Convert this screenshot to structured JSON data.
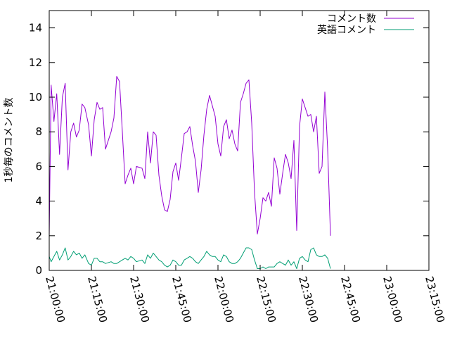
{
  "chart_data": {
    "type": "line",
    "ylabel": "1秒毎のコメント数",
    "x_range": [
      "21:00:00",
      "23:15:00"
    ],
    "x_ticks": [
      "21:00:00",
      "21:15:00",
      "21:30:00",
      "21:45:00",
      "22:00:00",
      "22:15:00",
      "22:30:00",
      "22:45:00",
      "23:00:00",
      "23:15:00"
    ],
    "y_range": [
      0,
      15
    ],
    "y_ticks": [
      "0",
      "2",
      "4",
      "6",
      "8",
      "10",
      "12",
      "14"
    ],
    "legend_position": "top-right",
    "grid": false,
    "series": [
      {
        "name": "コメント数",
        "color": "#9400d3",
        "points": [
          [
            "21:00:00",
            2.0
          ],
          [
            "21:00:40",
            10.7
          ],
          [
            "21:01:40",
            8.6
          ],
          [
            "21:02:40",
            10.2
          ],
          [
            "21:03:40",
            6.7
          ],
          [
            "21:04:40",
            10.0
          ],
          [
            "21:05:40",
            10.8
          ],
          [
            "21:06:40",
            5.8
          ],
          [
            "21:07:40",
            8.0
          ],
          [
            "21:08:40",
            8.5
          ],
          [
            "21:09:40",
            7.7
          ],
          [
            "21:10:40",
            8.1
          ],
          [
            "21:11:40",
            9.6
          ],
          [
            "21:12:40",
            9.4
          ],
          [
            "21:14:00",
            8.4
          ],
          [
            "21:15:00",
            6.6
          ],
          [
            "21:16:00",
            8.7
          ],
          [
            "21:17:00",
            9.7
          ],
          [
            "21:18:00",
            9.3
          ],
          [
            "21:19:00",
            9.4
          ],
          [
            "21:20:00",
            7.0
          ],
          [
            "21:22:00",
            8.0
          ],
          [
            "21:23:00",
            8.8
          ],
          [
            "21:24:00",
            11.2
          ],
          [
            "21:25:00",
            10.9
          ],
          [
            "21:26:00",
            8.0
          ],
          [
            "21:27:00",
            5.0
          ],
          [
            "21:28:00",
            5.5
          ],
          [
            "21:29:00",
            5.9
          ],
          [
            "21:30:00",
            5.0
          ],
          [
            "21:31:00",
            6.0
          ],
          [
            "21:33:00",
            5.9
          ],
          [
            "21:34:00",
            5.3
          ],
          [
            "21:35:00",
            8.0
          ],
          [
            "21:36:00",
            6.2
          ],
          [
            "21:37:00",
            8.0
          ],
          [
            "21:38:00",
            7.8
          ],
          [
            "21:39:00",
            5.5
          ],
          [
            "21:40:00",
            4.3
          ],
          [
            "21:41:00",
            3.5
          ],
          [
            "21:42:00",
            3.4
          ],
          [
            "21:43:00",
            4.1
          ],
          [
            "21:44:00",
            5.7
          ],
          [
            "21:45:00",
            6.2
          ],
          [
            "21:46:00",
            5.2
          ],
          [
            "21:47:00",
            6.5
          ],
          [
            "21:48:00",
            7.9
          ],
          [
            "21:49:00",
            8.0
          ],
          [
            "21:50:00",
            8.3
          ],
          [
            "21:51:00",
            7.2
          ],
          [
            "21:52:00",
            6.3
          ],
          [
            "21:53:00",
            4.5
          ],
          [
            "21:54:00",
            5.8
          ],
          [
            "21:55:00",
            7.8
          ],
          [
            "21:56:00",
            9.3
          ],
          [
            "21:57:00",
            10.1
          ],
          [
            "21:58:00",
            9.5
          ],
          [
            "21:59:00",
            8.9
          ],
          [
            "22:00:00",
            7.3
          ],
          [
            "22:01:00",
            6.6
          ],
          [
            "22:02:00",
            8.3
          ],
          [
            "22:03:00",
            8.7
          ],
          [
            "22:04:00",
            7.6
          ],
          [
            "22:05:00",
            8.1
          ],
          [
            "22:06:00",
            7.3
          ],
          [
            "22:07:00",
            6.9
          ],
          [
            "22:08:00",
            9.7
          ],
          [
            "22:09:00",
            10.2
          ],
          [
            "22:10:00",
            10.8
          ],
          [
            "22:11:00",
            11.0
          ],
          [
            "22:12:00",
            8.5
          ],
          [
            "22:13:00",
            4.5
          ],
          [
            "22:14:00",
            2.1
          ],
          [
            "22:15:00",
            3.0
          ],
          [
            "22:16:00",
            4.2
          ],
          [
            "22:17:00",
            4.0
          ],
          [
            "22:18:00",
            4.5
          ],
          [
            "22:19:00",
            3.7
          ],
          [
            "22:20:00",
            6.5
          ],
          [
            "22:21:00",
            5.9
          ],
          [
            "22:22:00",
            4.4
          ],
          [
            "22:23:00",
            5.6
          ],
          [
            "22:24:00",
            6.7
          ],
          [
            "22:25:00",
            6.2
          ],
          [
            "22:26:00",
            5.3
          ],
          [
            "22:27:00",
            7.5
          ],
          [
            "22:28:00",
            2.3
          ],
          [
            "22:29:00",
            8.3
          ],
          [
            "22:30:00",
            9.9
          ],
          [
            "22:31:00",
            9.4
          ],
          [
            "22:32:00",
            8.9
          ],
          [
            "22:33:00",
            9.0
          ],
          [
            "22:34:00",
            8.0
          ],
          [
            "22:35:00",
            8.9
          ],
          [
            "22:36:00",
            5.6
          ],
          [
            "22:37:00",
            6.0
          ],
          [
            "22:38:00",
            10.3
          ],
          [
            "22:39:00",
            7.0
          ],
          [
            "22:40:00",
            2.0
          ]
        ]
      },
      {
        "name": "英語コメント",
        "color": "#009e73",
        "points": [
          [
            "21:00:00",
            0.8
          ],
          [
            "21:00:40",
            0.5
          ],
          [
            "21:01:40",
            0.8
          ],
          [
            "21:02:40",
            1.1
          ],
          [
            "21:03:40",
            0.6
          ],
          [
            "21:04:40",
            0.9
          ],
          [
            "21:05:40",
            1.3
          ],
          [
            "21:06:40",
            0.6
          ],
          [
            "21:07:40",
            0.8
          ],
          [
            "21:08:40",
            1.1
          ],
          [
            "21:09:40",
            0.9
          ],
          [
            "21:10:40",
            1.0
          ],
          [
            "21:11:40",
            0.7
          ],
          [
            "21:12:40",
            0.9
          ],
          [
            "21:14:00",
            0.4
          ],
          [
            "21:15:00",
            0.3
          ],
          [
            "21:16:00",
            0.7
          ],
          [
            "21:17:00",
            0.7
          ],
          [
            "21:18:00",
            0.5
          ],
          [
            "21:19:00",
            0.5
          ],
          [
            "21:20:00",
            0.4
          ],
          [
            "21:22:00",
            0.5
          ],
          [
            "21:23:00",
            0.4
          ],
          [
            "21:24:00",
            0.4
          ],
          [
            "21:25:00",
            0.5
          ],
          [
            "21:26:00",
            0.6
          ],
          [
            "21:27:00",
            0.7
          ],
          [
            "21:28:00",
            0.6
          ],
          [
            "21:29:00",
            0.8
          ],
          [
            "21:30:00",
            0.7
          ],
          [
            "21:31:00",
            0.5
          ],
          [
            "21:33:00",
            0.6
          ],
          [
            "21:34:00",
            0.4
          ],
          [
            "21:35:00",
            0.9
          ],
          [
            "21:36:00",
            0.7
          ],
          [
            "21:37:00",
            1.0
          ],
          [
            "21:38:00",
            0.8
          ],
          [
            "21:39:00",
            0.6
          ],
          [
            "21:40:00",
            0.5
          ],
          [
            "21:41:00",
            0.3
          ],
          [
            "21:42:00",
            0.2
          ],
          [
            "21:43:00",
            0.3
          ],
          [
            "21:44:00",
            0.6
          ],
          [
            "21:45:00",
            0.5
          ],
          [
            "21:46:00",
            0.3
          ],
          [
            "21:47:00",
            0.3
          ],
          [
            "21:48:00",
            0.6
          ],
          [
            "21:49:00",
            0.7
          ],
          [
            "21:50:00",
            0.8
          ],
          [
            "21:51:00",
            0.7
          ],
          [
            "21:52:00",
            0.5
          ],
          [
            "21:53:00",
            0.4
          ],
          [
            "21:54:00",
            0.6
          ],
          [
            "21:55:00",
            0.8
          ],
          [
            "21:56:00",
            1.1
          ],
          [
            "21:57:00",
            0.9
          ],
          [
            "21:58:00",
            0.8
          ],
          [
            "21:59:00",
            0.8
          ],
          [
            "22:00:00",
            0.6
          ],
          [
            "22:01:00",
            0.5
          ],
          [
            "22:02:00",
            0.9
          ],
          [
            "22:03:00",
            0.8
          ],
          [
            "22:04:00",
            0.5
          ],
          [
            "22:05:00",
            0.4
          ],
          [
            "22:06:00",
            0.4
          ],
          [
            "22:07:00",
            0.5
          ],
          [
            "22:08:00",
            0.7
          ],
          [
            "22:09:00",
            1.0
          ],
          [
            "22:10:00",
            1.3
          ],
          [
            "22:11:00",
            1.3
          ],
          [
            "22:12:00",
            1.2
          ],
          [
            "22:13:00",
            0.6
          ],
          [
            "22:14:00",
            0.1
          ],
          [
            "22:15:00",
            0.1
          ],
          [
            "22:16:00",
            0.2
          ],
          [
            "22:17:00",
            0.1
          ],
          [
            "22:18:00",
            0.2
          ],
          [
            "22:19:00",
            0.2
          ],
          [
            "22:20:00",
            0.2
          ],
          [
            "22:21:00",
            0.4
          ],
          [
            "22:22:00",
            0.5
          ],
          [
            "22:23:00",
            0.4
          ],
          [
            "22:24:00",
            0.3
          ],
          [
            "22:25:00",
            0.6
          ],
          [
            "22:26:00",
            0.3
          ],
          [
            "22:27:00",
            0.5
          ],
          [
            "22:28:00",
            0.1
          ],
          [
            "22:29:00",
            0.7
          ],
          [
            "22:30:00",
            0.8
          ],
          [
            "22:31:00",
            0.6
          ],
          [
            "22:32:00",
            0.5
          ],
          [
            "22:33:00",
            1.2
          ],
          [
            "22:34:00",
            1.3
          ],
          [
            "22:35:00",
            0.9
          ],
          [
            "22:36:00",
            0.8
          ],
          [
            "22:37:00",
            0.8
          ],
          [
            "22:38:00",
            0.9
          ],
          [
            "22:39:00",
            0.7
          ],
          [
            "22:40:00",
            0.1
          ]
        ]
      }
    ]
  }
}
